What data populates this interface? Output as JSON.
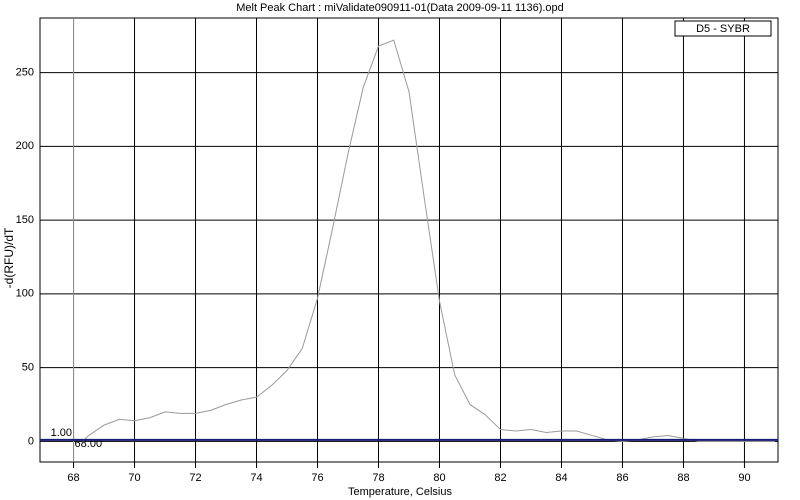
{
  "chart_data": {
    "type": "line",
    "title": "Melt Peak Chart : miValidate090911-01(Data 2009-09-11 1136).opd",
    "x_label": "Temperature, Celsius",
    "y_label": "-d(RFU)/dT",
    "x": [
      68.3,
      68.5,
      69,
      69.5,
      70,
      70.5,
      71,
      71.5,
      72,
      72.5,
      73,
      73.5,
      74,
      74.5,
      75,
      75.5,
      76,
      76.5,
      77,
      77.5,
      78,
      78.5,
      79,
      79.5,
      80,
      80.5,
      81,
      81.5,
      82,
      82.5,
      83,
      83.5,
      84,
      84.5,
      85,
      85.5,
      86,
      86.5,
      87,
      87.5,
      88,
      88.5,
      89,
      89.5,
      90,
      90.5,
      91
    ],
    "series": [
      {
        "name": "D5 - SYBR",
        "color": "#9a9a9a",
        "values": [
          0,
          4,
          11,
          15,
          14,
          16,
          20,
          19,
          19,
          21,
          25,
          28,
          30,
          38,
          48,
          63,
          97,
          145,
          195,
          240,
          268,
          272,
          237,
          165,
          95,
          45,
          25,
          18,
          8,
          7,
          8,
          6,
          7,
          7,
          4,
          1,
          0,
          1,
          3,
          4,
          2,
          0,
          0,
          0,
          0,
          0,
          0
        ]
      }
    ],
    "xlim": [
      66.9,
      91.1
    ],
    "ylim": [
      -14,
      287
    ],
    "xticks": [
      68,
      70,
      72,
      74,
      76,
      78,
      80,
      82,
      84,
      86,
      88,
      90
    ],
    "yticks": [
      0,
      50,
      100,
      150,
      200,
      250
    ],
    "grid": true,
    "legend": "upper right",
    "threshold": {
      "value": 1,
      "label": "1.00",
      "color": "#1a1a7a"
    },
    "cursor": {
      "value": 68,
      "label": "68.00",
      "color": "#d2824a"
    }
  }
}
